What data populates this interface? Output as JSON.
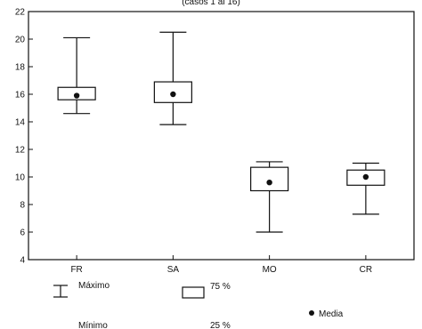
{
  "chart_data": {
    "type": "boxplot",
    "subtitle": "(casos 1 al 16)",
    "categories": [
      "FR",
      "SA",
      "MO",
      "CR"
    ],
    "ylim": [
      4,
      22
    ],
    "yticks": [
      4,
      6,
      8,
      10,
      12,
      14,
      16,
      18,
      20,
      22
    ],
    "boxes": [
      {
        "category": "FR",
        "min": 14.6,
        "q1": 15.6,
        "mean": 15.9,
        "q3": 16.5,
        "max": 20.1
      },
      {
        "category": "SA",
        "min": 13.8,
        "q1": 15.4,
        "mean": 16.0,
        "q3": 16.9,
        "max": 20.5
      },
      {
        "category": "MO",
        "min": 6.0,
        "q1": 9.0,
        "mean": 9.6,
        "q3": 10.7,
        "max": 11.1
      },
      {
        "category": "CR",
        "min": 7.3,
        "q1": 9.4,
        "mean": 10.0,
        "q3": 10.5,
        "max": 11.0
      }
    ],
    "grid": false,
    "legend": {
      "position": "bottom",
      "max_label": "Máximo",
      "min_label": "Mínimo",
      "q3_label": "75 %",
      "q1_label": "25 %",
      "mean_label": "Media"
    }
  }
}
